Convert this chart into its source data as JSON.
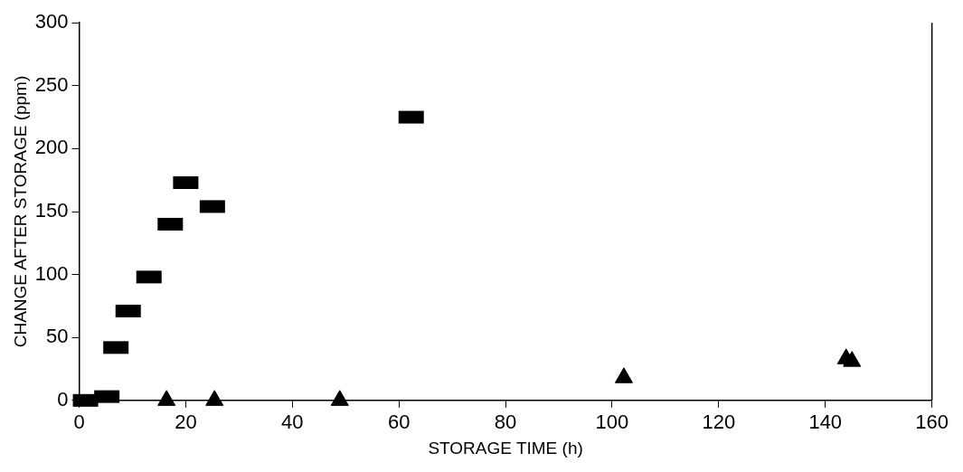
{
  "chart_data": {
    "type": "scatter",
    "xlabel": "STORAGE TIME (h)",
    "ylabel": "CHANGE AFTER STORAGE (ppm)",
    "xlim": [
      0,
      160
    ],
    "xticks": [
      0,
      20,
      40,
      60,
      80,
      100,
      120,
      140,
      160
    ],
    "ylim": [
      0,
      300
    ],
    "yticks": [
      0,
      50,
      100,
      150,
      200,
      250,
      300
    ],
    "grid": false,
    "legend": false,
    "series": [
      {
        "color": "#000000",
        "marker": "square",
        "x": [
          1.2,
          5.2,
          6.9,
          9.2,
          13.1,
          17.1,
          20,
          25,
          62.3
        ],
        "values": [
          0,
          3,
          42,
          71,
          98,
          140,
          173,
          154,
          225
        ]
      },
      {
        "color": "#000000",
        "marker": "triangle",
        "x": [
          16.4,
          25.4,
          48.9,
          102.2,
          143.9,
          145
        ],
        "values": [
          0,
          0,
          0,
          18,
          33,
          31
        ]
      }
    ]
  }
}
